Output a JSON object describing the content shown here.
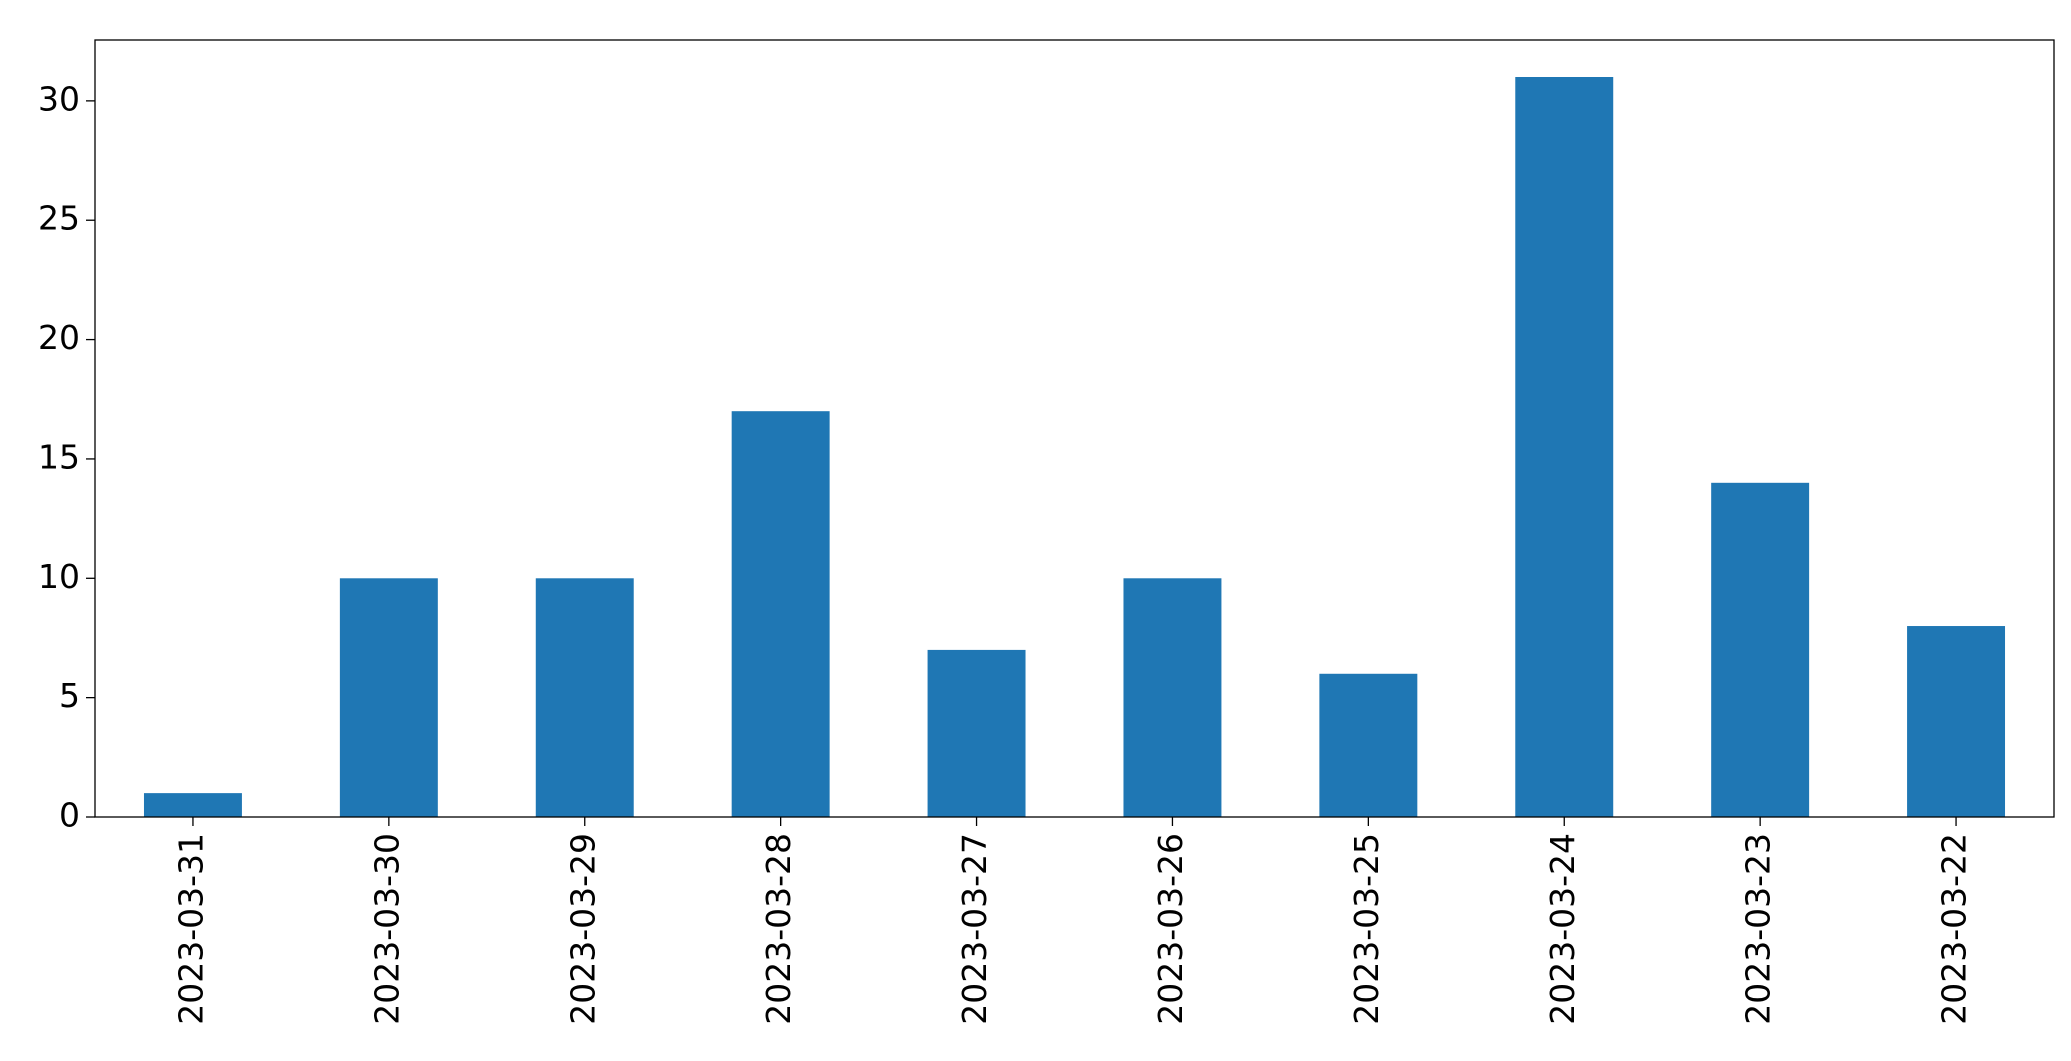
{
  "chart_data": {
    "type": "bar",
    "categories": [
      "2023-03-31",
      "2023-03-30",
      "2023-03-29",
      "2023-03-28",
      "2023-03-27",
      "2023-03-26",
      "2023-03-25",
      "2023-03-24",
      "2023-03-23",
      "2023-03-22"
    ],
    "values": [
      1,
      10,
      10,
      17,
      7,
      10,
      6,
      31,
      14,
      8
    ],
    "color": "#1f77b4",
    "ylim": [
      0,
      32.55
    ],
    "yticks": [
      0,
      5,
      10,
      15,
      20,
      25,
      30
    ],
    "grid": false
  }
}
